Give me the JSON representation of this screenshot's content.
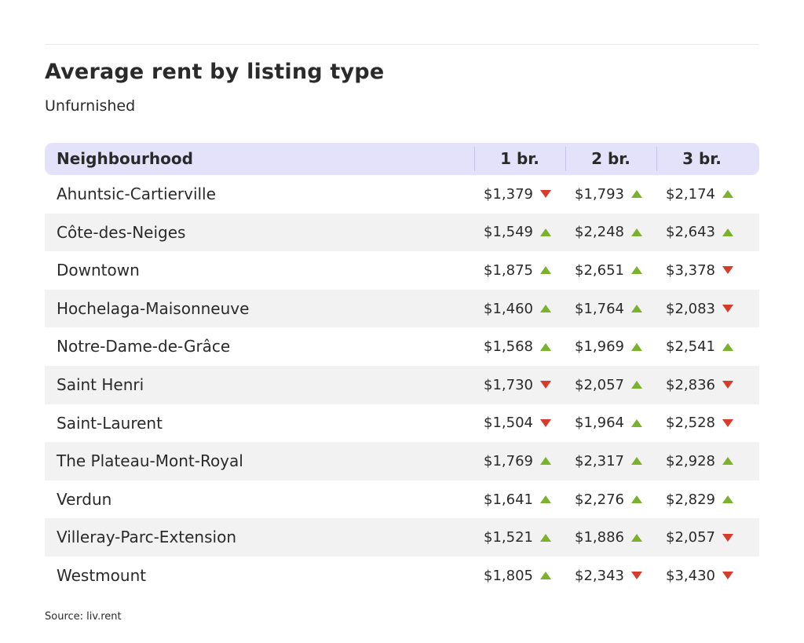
{
  "title": "Average rent by listing type",
  "subtitle": "Unfurnished",
  "source": "Source: liv.rent",
  "chart_data": {
    "type": "table",
    "title": "Average rent by listing type",
    "subtitle": "Unfurnished",
    "columns": [
      "Neighbourhood",
      "1 br.",
      "2 br.",
      "3 br."
    ],
    "rows": [
      {
        "name": "Ahuntsic-Cartierville",
        "values": [
          "$1,379",
          "$1,793",
          "$2,174"
        ],
        "trend": [
          "down",
          "up",
          "up"
        ]
      },
      {
        "name": "Côte-des-Neiges",
        "values": [
          "$1,549",
          "$2,248",
          "$2,643"
        ],
        "trend": [
          "up",
          "up",
          "up"
        ]
      },
      {
        "name": "Downtown",
        "values": [
          "$1,875",
          "$2,651",
          "$3,378"
        ],
        "trend": [
          "up",
          "up",
          "down"
        ]
      },
      {
        "name": "Hochelaga-Maisonneuve",
        "values": [
          "$1,460",
          "$1,764",
          "$2,083"
        ],
        "trend": [
          "up",
          "up",
          "down"
        ]
      },
      {
        "name": "Notre-Dame-de-Grâce",
        "values": [
          "$1,568",
          "$1,969",
          "$2,541"
        ],
        "trend": [
          "up",
          "up",
          "up"
        ]
      },
      {
        "name": "Saint Henri",
        "values": [
          "$1,730",
          "$2,057",
          "$2,836"
        ],
        "trend": [
          "down",
          "up",
          "down"
        ]
      },
      {
        "name": "Saint-Laurent",
        "values": [
          "$1,504",
          "$1,964",
          "$2,528"
        ],
        "trend": [
          "down",
          "up",
          "down"
        ]
      },
      {
        "name": "The Plateau-Mont-Royal",
        "values": [
          "$1,769",
          "$2,317",
          "$2,928"
        ],
        "trend": [
          "up",
          "up",
          "up"
        ]
      },
      {
        "name": "Verdun",
        "values": [
          "$1,641",
          "$2,276",
          "$2,829"
        ],
        "trend": [
          "up",
          "up",
          "up"
        ]
      },
      {
        "name": "Villeray-Parc-Extension",
        "values": [
          "$1,521",
          "$1,886",
          "$2,057"
        ],
        "trend": [
          "up",
          "up",
          "down"
        ]
      },
      {
        "name": "Westmount",
        "values": [
          "$1,805",
          "$2,343",
          "$3,430"
        ],
        "trend": [
          "up",
          "down",
          "down"
        ]
      }
    ],
    "trend_icons": {
      "up": "triangle-up-icon",
      "down": "triangle-down-icon"
    },
    "colors": {
      "header_bg": "#e4e1fb",
      "alt_row_bg": "#f2f2f2",
      "up": "#7ab12d",
      "down": "#d93b2b"
    }
  }
}
